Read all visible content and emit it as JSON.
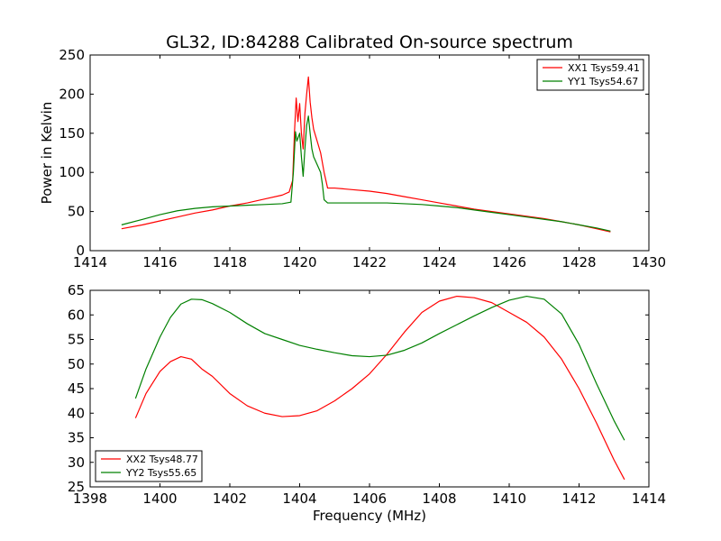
{
  "figure": {
    "title": "GL32, ID:84288 Calibrated On-source spectrum"
  },
  "chart_data": [
    {
      "type": "line",
      "title": "GL32, ID:84288 Calibrated On-source spectrum",
      "xlabel": "",
      "ylabel": "Power in Kelvin",
      "xlim": [
        1414,
        1430
      ],
      "ylim": [
        0,
        250
      ],
      "xticks": [
        1414,
        1416,
        1418,
        1420,
        1422,
        1424,
        1426,
        1428,
        1430
      ],
      "yticks": [
        0,
        50,
        100,
        150,
        200,
        250
      ],
      "grid": false,
      "legend": "top-right",
      "series": [
        {
          "name": "XX1 Tsys59.41",
          "color": "#ff0000",
          "x": [
            1414.9,
            1415.5,
            1416.0,
            1416.5,
            1417.0,
            1417.5,
            1418.0,
            1418.5,
            1419.0,
            1419.5,
            1419.7,
            1419.8,
            1419.85,
            1419.9,
            1419.95,
            1420.0,
            1420.05,
            1420.1,
            1420.15,
            1420.2,
            1420.25,
            1420.3,
            1420.35,
            1420.4,
            1420.5,
            1420.6,
            1420.7,
            1420.8,
            1421.0,
            1421.5,
            1422.0,
            1422.5,
            1423.0,
            1423.5,
            1424.0,
            1424.5,
            1425.0,
            1425.5,
            1426.0,
            1426.5,
            1427.0,
            1427.5,
            1428.0,
            1428.5,
            1428.9
          ],
          "y": [
            28,
            33,
            38,
            43,
            48,
            52,
            57,
            61,
            66,
            71,
            75,
            90,
            150,
            195,
            165,
            188,
            150,
            130,
            175,
            200,
            222,
            190,
            170,
            155,
            140,
            125,
            100,
            80,
            80,
            78,
            76,
            73,
            69,
            65,
            61,
            57,
            53,
            50,
            47,
            44,
            41,
            37,
            33,
            28,
            24
          ]
        },
        {
          "name": "YY1 Tsys54.67",
          "color": "#008000",
          "x": [
            1414.9,
            1415.5,
            1416.0,
            1416.5,
            1417.0,
            1417.5,
            1418.0,
            1418.5,
            1419.0,
            1419.5,
            1419.75,
            1419.82,
            1419.88,
            1419.92,
            1420.0,
            1420.05,
            1420.1,
            1420.15,
            1420.2,
            1420.25,
            1420.3,
            1420.35,
            1420.4,
            1420.5,
            1420.6,
            1420.65,
            1420.7,
            1420.8,
            1421.0,
            1421.5,
            1422.0,
            1422.5,
            1423.0,
            1423.5,
            1424.0,
            1424.5,
            1425.0,
            1425.5,
            1426.0,
            1426.5,
            1427.0,
            1427.5,
            1428.0,
            1428.5,
            1428.9
          ],
          "y": [
            33,
            40,
            46,
            51,
            54,
            56,
            57,
            58,
            59,
            60,
            62,
            100,
            152,
            140,
            150,
            120,
            95,
            130,
            160,
            172,
            150,
            130,
            120,
            110,
            100,
            85,
            65,
            61,
            61,
            61,
            61,
            61,
            60,
            59,
            57,
            55,
            52,
            49,
            46,
            43,
            40,
            37,
            33,
            29,
            25
          ]
        }
      ]
    },
    {
      "type": "line",
      "title": "",
      "xlabel": "Frequency (MHz)",
      "ylabel": "",
      "xlim": [
        1398,
        1414
      ],
      "ylim": [
        25,
        65
      ],
      "xticks": [
        1398,
        1400,
        1402,
        1404,
        1406,
        1408,
        1410,
        1412,
        1414
      ],
      "yticks": [
        25,
        30,
        35,
        40,
        45,
        50,
        55,
        60,
        65
      ],
      "grid": false,
      "legend": "bottom-left",
      "series": [
        {
          "name": "XX2 Tsys48.77",
          "color": "#ff0000",
          "x": [
            1399.3,
            1399.6,
            1400.0,
            1400.3,
            1400.6,
            1400.9,
            1401.2,
            1401.5,
            1402.0,
            1402.5,
            1403.0,
            1403.5,
            1404.0,
            1404.5,
            1405.0,
            1405.5,
            1406.0,
            1406.5,
            1407.0,
            1407.5,
            1408.0,
            1408.5,
            1409.0,
            1409.5,
            1410.0,
            1410.5,
            1411.0,
            1411.5,
            1412.0,
            1412.5,
            1413.0,
            1413.3
          ],
          "y": [
            39,
            44,
            48.5,
            50.5,
            51.5,
            51,
            49,
            47.5,
            44,
            41.5,
            40,
            39.3,
            39.5,
            40.5,
            42.5,
            45,
            48,
            52,
            56.5,
            60.5,
            62.8,
            63.8,
            63.5,
            62.5,
            60.5,
            58.5,
            55.5,
            51,
            45,
            38,
            30.5,
            26.5
          ]
        },
        {
          "name": "YY2 Tsys55.65",
          "color": "#008000",
          "x": [
            1399.3,
            1399.6,
            1400.0,
            1400.3,
            1400.6,
            1400.9,
            1401.2,
            1401.5,
            1402.0,
            1402.5,
            1403.0,
            1403.5,
            1404.0,
            1404.5,
            1405.0,
            1405.5,
            1406.0,
            1406.5,
            1407.0,
            1407.5,
            1408.0,
            1408.5,
            1409.0,
            1409.5,
            1410.0,
            1410.5,
            1411.0,
            1411.5,
            1412.0,
            1412.5,
            1413.0,
            1413.3
          ],
          "y": [
            43,
            49,
            55.5,
            59.5,
            62.2,
            63.2,
            63.1,
            62.3,
            60.5,
            58.2,
            56.2,
            55,
            53.8,
            53,
            52.3,
            51.7,
            51.5,
            51.8,
            52.8,
            54.3,
            56.2,
            58,
            59.8,
            61.5,
            63,
            63.8,
            63.2,
            60.2,
            54,
            46,
            38.5,
            34.5
          ]
        }
      ]
    }
  ]
}
